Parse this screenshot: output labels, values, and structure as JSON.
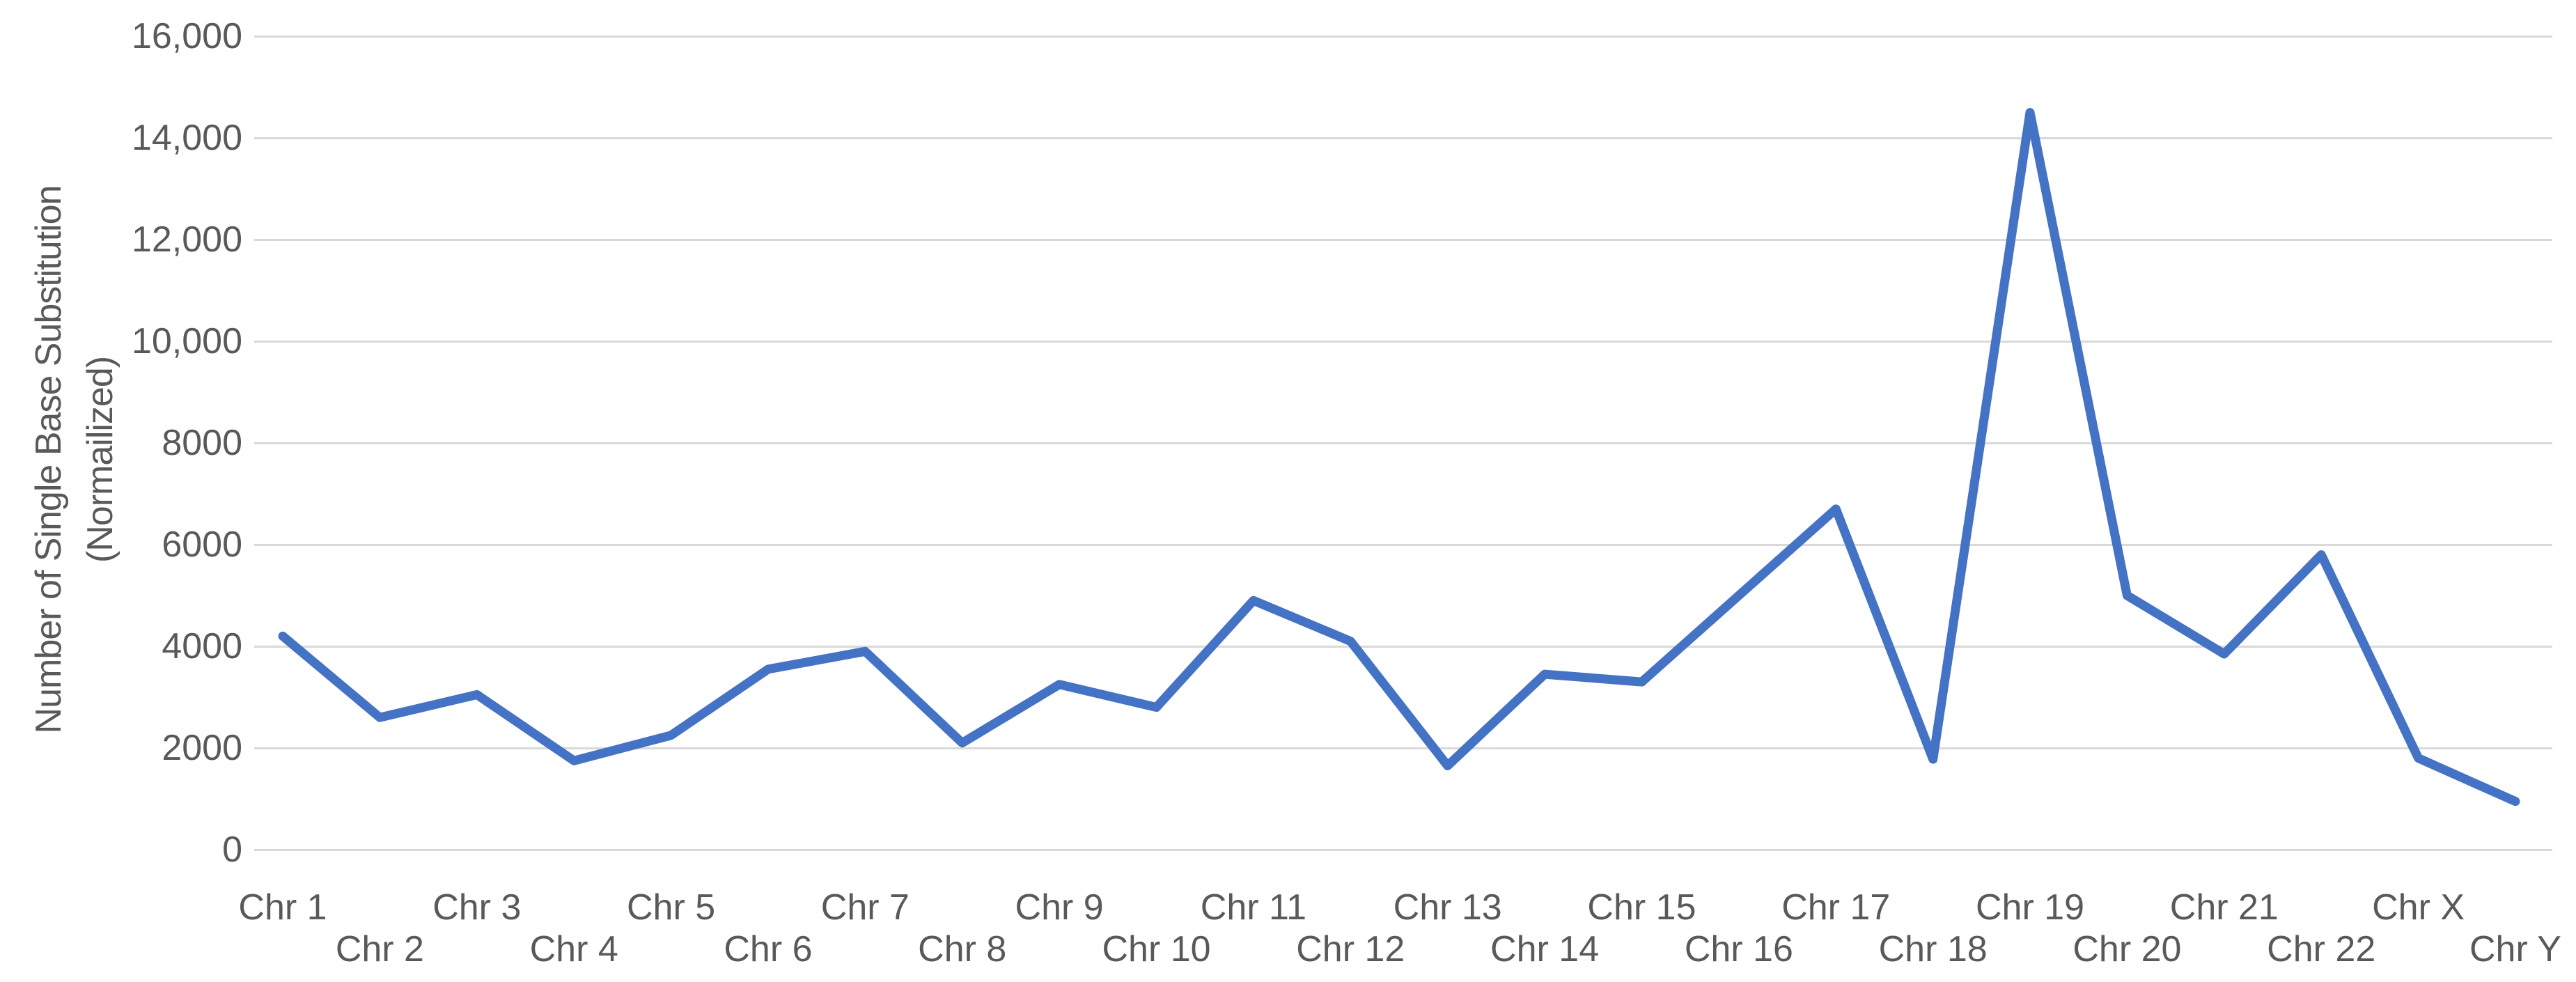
{
  "chart_data": {
    "type": "line",
    "title": "",
    "ylabel_lines": [
      "Number of Single Base Substitution",
      "(Normailized)"
    ],
    "xlabel": "",
    "categories": [
      "Chr 1",
      "Chr 2",
      "Chr 3",
      "Chr 4",
      "Chr 5",
      "Chr 6",
      "Chr 7",
      "Chr 8",
      "Chr 9",
      "Chr 10",
      "Chr 11",
      "Chr 12",
      "Chr 13",
      "Chr 14",
      "Chr 15",
      "Chr 16",
      "Chr 17",
      "Chr 18",
      "Chr 19",
      "Chr 20",
      "Chr 21",
      "Chr 22",
      "Chr X",
      "Chr Y"
    ],
    "series": [
      {
        "name": "Number of Single Base Substitution (Normailized)",
        "values": [
          4200,
          2600,
          3050,
          1750,
          2250,
          3550,
          3900,
          2100,
          3250,
          2800,
          4900,
          4100,
          1650,
          3450,
          3300,
          5000,
          6700,
          1780,
          14500,
          5000,
          3850,
          5800,
          1800,
          950
        ]
      }
    ],
    "ylim": [
      0,
      16000
    ],
    "y_ticks": [
      {
        "value": 0,
        "label": "0"
      },
      {
        "value": 2000,
        "label": "2000"
      },
      {
        "value": 4000,
        "label": "4000"
      },
      {
        "value": 6000,
        "label": "6000"
      },
      {
        "value": 8000,
        "label": "8000"
      },
      {
        "value": 10000,
        "label": "10,000"
      },
      {
        "value": 12000,
        "label": "12,000"
      },
      {
        "value": 14000,
        "label": "14,000"
      },
      {
        "value": 16000,
        "label": "16,000"
      }
    ],
    "grid": "horizontal",
    "legend": "none",
    "x_label_layout": "staggered-two-rows",
    "colors": {
      "line": "#4472C4",
      "gridline": "#d9d9d9",
      "axis_text": "#595959",
      "background": "#ffffff"
    }
  }
}
